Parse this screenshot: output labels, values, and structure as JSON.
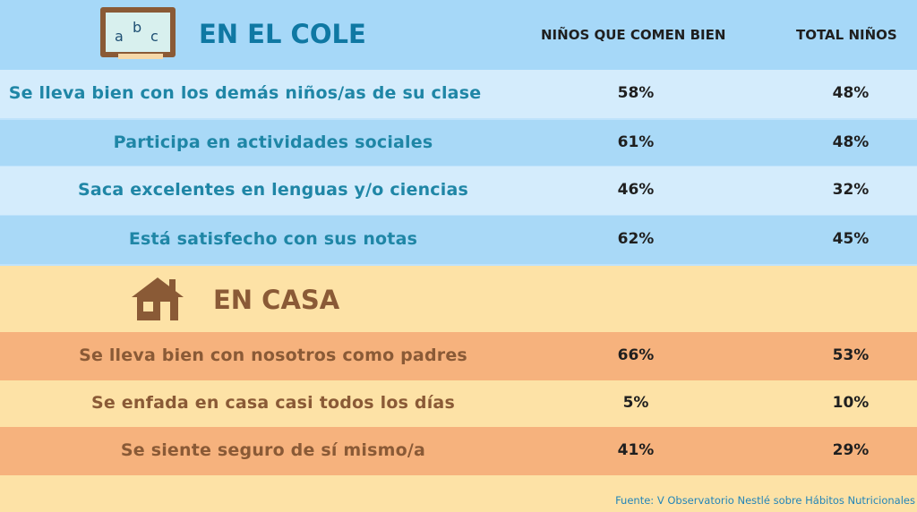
{
  "chart_data": {
    "type": "table",
    "columns": [
      "NIÑOS QUE COMEN BIEN",
      "TOTAL NIÑOS"
    ],
    "sections": [
      {
        "title": "EN EL COLE",
        "icon": "chalkboard-abc-icon",
        "rows": [
          {
            "label": "Se lleva bien con los demás niños/as de su clase",
            "values": [
              "58%",
              "48%"
            ]
          },
          {
            "label": "Participa en actividades sociales",
            "values": [
              "61%",
              "48%"
            ]
          },
          {
            "label": "Saca excelentes en lenguas y/o ciencias",
            "values": [
              "46%",
              "32%"
            ]
          },
          {
            "label": "Está satisfecho con sus notas",
            "values": [
              "62%",
              "45%"
            ]
          }
        ]
      },
      {
        "title": "EN CASA",
        "icon": "house-icon",
        "rows": [
          {
            "label": "Se lleva bien con nosotros como padres",
            "values": [
              "66%",
              "53%"
            ]
          },
          {
            "label": "Se enfada en casa casi todos los días",
            "values": [
              "5%",
              "10%"
            ]
          },
          {
            "label": "Se siente seguro de sí mismo/a",
            "values": [
              "41%",
              "29%"
            ]
          }
        ]
      }
    ],
    "source": "Fuente: V Observatorio Nestlé sobre Hábitos Nutricionales"
  },
  "colors": {
    "school_header": "#a6d8f8",
    "school_row_light": "#d4ecfc",
    "school_row_dark": "#a9d9f7",
    "school_text": "#1f86a6",
    "home_bg": "#fde2a6",
    "home_row_dark": "#f6b27d",
    "home_text": "#8a5a36"
  }
}
